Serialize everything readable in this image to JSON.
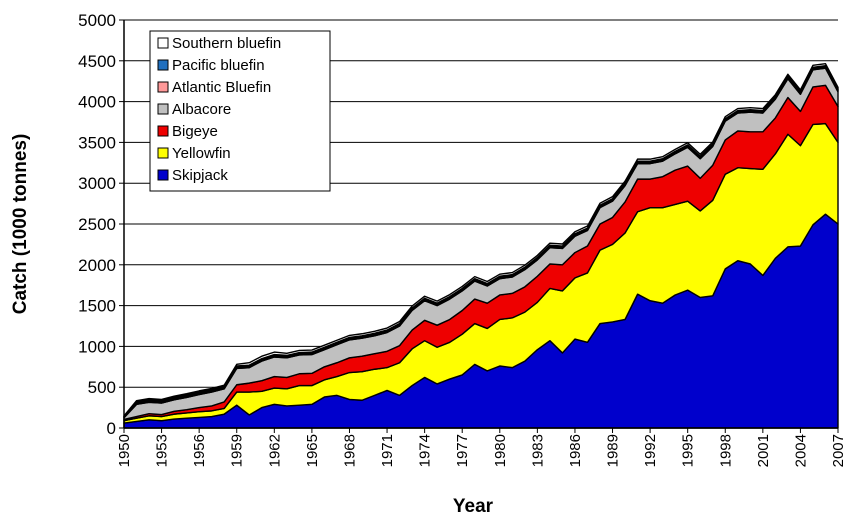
{
  "chart_data": {
    "type": "area",
    "stacked": true,
    "title": "",
    "xlabel": "Year",
    "ylabel": "Catch (1000 tonnes)",
    "ylim": [
      0,
      5000
    ],
    "yticks": [
      0,
      500,
      1000,
      1500,
      2000,
      2500,
      3000,
      3500,
      4000,
      4500,
      5000
    ],
    "xticks": [
      1950,
      1953,
      1956,
      1959,
      1962,
      1965,
      1968,
      1971,
      1974,
      1977,
      1980,
      1983,
      1986,
      1989,
      1992,
      1995,
      1998,
      2001,
      2004,
      2007
    ],
    "grid": "horizontal",
    "legend_position": "top-left",
    "x": [
      1950,
      1951,
      1952,
      1953,
      1954,
      1955,
      1956,
      1957,
      1958,
      1959,
      1960,
      1961,
      1962,
      1963,
      1964,
      1965,
      1966,
      1967,
      1968,
      1969,
      1970,
      1971,
      1972,
      1973,
      1974,
      1975,
      1976,
      1977,
      1978,
      1979,
      1980,
      1981,
      1982,
      1983,
      1984,
      1985,
      1986,
      1987,
      1988,
      1989,
      1990,
      1991,
      1992,
      1993,
      1994,
      1995,
      1996,
      1997,
      1998,
      1999,
      2000,
      2001,
      2002,
      2003,
      2004,
      2005,
      2006,
      2007
    ],
    "series": [
      {
        "name": "Skipjack",
        "color": "#0000cc",
        "values": [
          60,
          80,
          100,
          90,
          110,
          120,
          130,
          140,
          170,
          280,
          160,
          250,
          290,
          270,
          280,
          290,
          380,
          400,
          350,
          340,
          400,
          460,
          400,
          520,
          620,
          540,
          600,
          650,
          780,
          700,
          760,
          740,
          820,
          960,
          1070,
          920,
          1090,
          1050,
          1280,
          1300,
          1330,
          1640,
          1560,
          1530,
          1630,
          1690,
          1600,
          1620,
          1950,
          2050,
          2010,
          1870,
          2080,
          2220,
          2230,
          2490,
          2620,
          2500
        ]
      },
      {
        "name": "Yellowfin",
        "color": "#ffff00",
        "values": [
          30,
          40,
          50,
          50,
          60,
          65,
          70,
          70,
          70,
          160,
          280,
          200,
          200,
          210,
          240,
          230,
          210,
          230,
          330,
          350,
          320,
          280,
          400,
          450,
          450,
          450,
          450,
          500,
          500,
          520,
          570,
          610,
          600,
          580,
          640,
          760,
          750,
          850,
          900,
          950,
          1060,
          1010,
          1140,
          1170,
          1110,
          1090,
          1060,
          1170,
          1160,
          1140,
          1170,
          1300,
          1280,
          1380,
          1230,
          1230,
          1110,
          1000
        ]
      },
      {
        "name": "Bigeye",
        "color": "#ee0000",
        "values": [
          15,
          20,
          25,
          25,
          35,
          40,
          50,
          60,
          80,
          90,
          110,
          130,
          140,
          140,
          145,
          150,
          160,
          170,
          180,
          190,
          190,
          200,
          210,
          230,
          250,
          270,
          280,
          290,
          300,
          310,
          300,
          300,
          310,
          320,
          300,
          320,
          310,
          330,
          320,
          330,
          380,
          400,
          350,
          380,
          420,
          430,
          400,
          430,
          420,
          450,
          450,
          460,
          440,
          450,
          420,
          460,
          470,
          440
        ]
      },
      {
        "name": "Albacore",
        "color": "#c0c0c0",
        "values": [
          20,
          150,
          140,
          140,
          140,
          150,
          160,
          170,
          160,
          200,
          190,
          240,
          240,
          240,
          230,
          230,
          210,
          220,
          220,
          220,
          220,
          230,
          240,
          240,
          240,
          240,
          250,
          240,
          220,
          210,
          200,
          200,
          210,
          200,
          200,
          200,
          200,
          190,
          200,
          200,
          200,
          190,
          190,
          190,
          200,
          230,
          240,
          230,
          230,
          220,
          240,
          230,
          230,
          230,
          210,
          210,
          210,
          180
        ]
      },
      {
        "name": "Atlantic Bluefin",
        "color": "#ff9999",
        "values": [
          8,
          15,
          15,
          15,
          15,
          15,
          15,
          15,
          15,
          15,
          15,
          15,
          15,
          15,
          15,
          15,
          15,
          15,
          15,
          15,
          15,
          15,
          15,
          15,
          15,
          15,
          15,
          15,
          15,
          15,
          15,
          15,
          15,
          15,
          15,
          15,
          15,
          15,
          15,
          15,
          15,
          15,
          15,
          15,
          15,
          15,
          15,
          15,
          15,
          15,
          15,
          15,
          15,
          15,
          15,
          15,
          15,
          15
        ]
      },
      {
        "name": "Pacific bluefin",
        "color": "#1f6fbf",
        "values": [
          8,
          15,
          15,
          15,
          15,
          15,
          15,
          15,
          15,
          15,
          15,
          15,
          15,
          15,
          15,
          15,
          15,
          15,
          15,
          15,
          15,
          15,
          15,
          15,
          15,
          15,
          15,
          15,
          15,
          15,
          15,
          15,
          15,
          15,
          15,
          15,
          15,
          15,
          15,
          15,
          15,
          15,
          15,
          15,
          15,
          15,
          15,
          15,
          15,
          15,
          15,
          15,
          15,
          15,
          15,
          15,
          15,
          15
        ]
      },
      {
        "name": "Southern bluefin",
        "color": "#ffffff",
        "values": [
          8,
          15,
          15,
          15,
          15,
          15,
          15,
          15,
          15,
          20,
          30,
          30,
          30,
          25,
          25,
          25,
          25,
          25,
          25,
          25,
          25,
          25,
          25,
          25,
          25,
          25,
          25,
          25,
          25,
          25,
          25,
          25,
          25,
          25,
          25,
          25,
          25,
          25,
          25,
          25,
          25,
          25,
          25,
          25,
          25,
          25,
          25,
          25,
          25,
          25,
          25,
          25,
          25,
          25,
          25,
          25,
          25,
          25
        ]
      }
    ]
  }
}
